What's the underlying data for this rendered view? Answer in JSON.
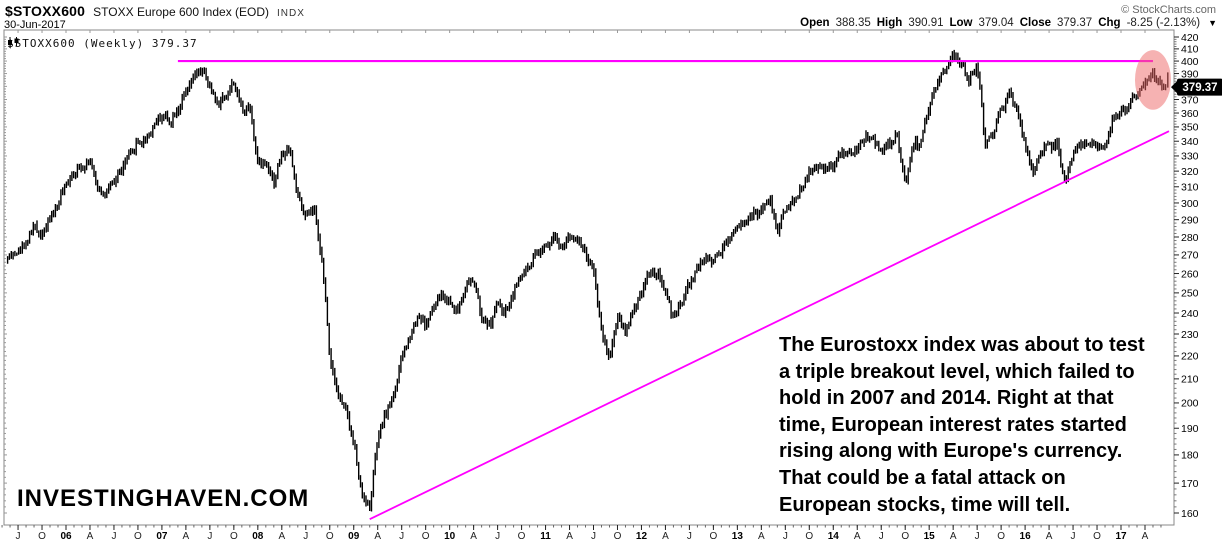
{
  "header": {
    "symbol": "$STOXX600",
    "title": "STOXX Europe 600 Index (EOD)",
    "exchange": "INDX",
    "date": "30-Jun-2017",
    "copyright": "© StockCharts.com",
    "quote": {
      "open_label": "Open",
      "open": "388.35",
      "high_label": "High",
      "high": "390.91",
      "low_label": "Low",
      "low": "379.04",
      "close_label": "Close",
      "close": "379.37",
      "chg_label": "Chg",
      "chg": "-8.25 (-2.13%)",
      "dropdown_arrow": "▼"
    }
  },
  "legend": {
    "icon": "candlestick-icon",
    "text": "$STOXX600 (Weekly) 379.37"
  },
  "watermark": "INVESTINGHAVEN.COM",
  "price_tag": "379.37",
  "annotation": {
    "lines": [
      "The Eurostoxx index was about to test",
      "a triple breakout level, which failed to",
      "hold in 2007 and 2014. Right at that",
      "time, European interest rates started",
      "rising along with Europe's currency.",
      "That could be a fatal attack on",
      "European stocks, time will tell."
    ]
  },
  "chart_data": {
    "type": "bar",
    "title": "$STOXX600 (Weekly) — STOXX Europe 600 Index",
    "xlabel": "",
    "ylabel": "",
    "log_scale": true,
    "grid": false,
    "y_axis": {
      "min": 160,
      "max": 420,
      "tick_step": 10,
      "side": "right"
    },
    "x_axis": {
      "start": "2005-05",
      "end": "2017-06",
      "year_labels": [
        "06",
        "07",
        "08",
        "09",
        "10",
        "11",
        "12",
        "13",
        "14",
        "15",
        "16",
        "17"
      ],
      "quarter_labels": {
        "apr": "A",
        "jul": "J",
        "oct": "O"
      }
    },
    "series": {
      "name": "$STOXX600 weekly close (monthly anchors)",
      "start_month": "2005-05",
      "monthly_close": [
        266,
        270,
        272,
        277,
        286,
        281,
        291,
        299,
        312,
        319,
        323,
        327,
        308,
        306,
        313,
        322,
        331,
        339,
        341,
        351,
        359,
        354,
        363,
        375,
        387,
        393,
        379,
        367,
        373,
        383,
        362,
        365,
        324,
        327,
        313,
        331,
        335,
        303,
        291,
        297,
        268,
        220,
        204,
        197,
        184,
        166,
        162,
        186,
        196,
        203,
        219,
        229,
        239,
        234,
        243,
        249,
        245,
        241,
        253,
        257,
        237,
        234,
        245,
        240,
        251,
        259,
        263,
        271,
        275,
        281,
        273,
        281,
        279,
        271,
        261,
        231,
        219,
        239,
        231,
        241,
        251,
        261,
        259,
        251,
        237,
        245,
        255,
        263,
        269,
        267,
        273,
        279,
        287,
        289,
        293,
        295,
        303,
        283,
        297,
        301,
        309,
        319,
        323,
        321,
        323,
        333,
        331,
        335,
        343,
        341,
        333,
        339,
        343,
        312,
        337,
        341,
        363,
        381,
        395,
        405,
        399,
        383,
        397,
        338,
        346,
        363,
        373,
        363,
        337,
        318,
        333,
        337,
        337,
        312,
        333,
        337,
        339,
        337,
        337,
        357,
        359,
        367,
        375,
        383,
        391,
        379.37
      ]
    },
    "last_bar": {
      "open": 388.35,
      "high": 390.91,
      "low": 379.04,
      "close": 379.37
    },
    "overlays": {
      "resistance_line": {
        "price": 400,
        "from": "2007-03",
        "to": "2017-05",
        "color": "#ff00ff",
        "width": 2.2
      },
      "trendline": {
        "from": {
          "date": "2009-03",
          "price": 158
        },
        "to": {
          "date": "2017-07",
          "price": 347
        },
        "color": "#ff00ff",
        "width": 1.8
      },
      "highlight_ellipse": {
        "date_center": "2017-05",
        "price_center": 385,
        "price_top": 409,
        "color": "#ee6666",
        "opacity": 0.5
      }
    }
  }
}
